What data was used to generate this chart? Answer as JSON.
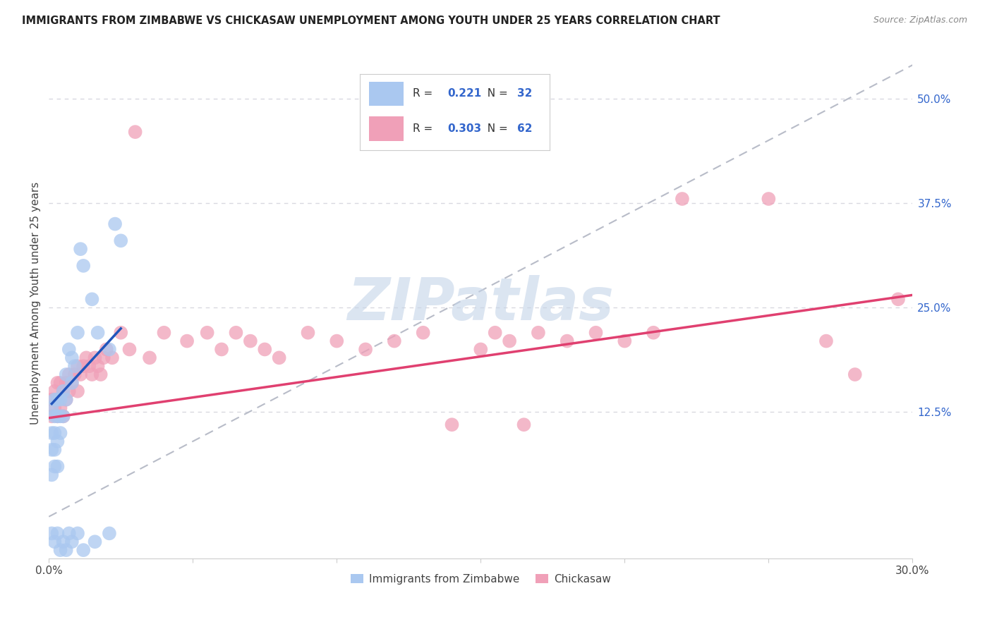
{
  "title": "IMMIGRANTS FROM ZIMBABWE VS CHICKASAW UNEMPLOYMENT AMONG YOUTH UNDER 25 YEARS CORRELATION CHART",
  "source": "Source: ZipAtlas.com",
  "ylabel": "Unemployment Among Youth under 25 years",
  "xlim": [
    0.0,
    0.3
  ],
  "ylim": [
    -0.05,
    0.56
  ],
  "xticks": [
    0.0,
    0.05,
    0.1,
    0.15,
    0.2,
    0.25,
    0.3
  ],
  "xticklabels": [
    "0.0%",
    "",
    "",
    "",
    "",
    "",
    "30.0%"
  ],
  "yticks_right": [
    0.125,
    0.25,
    0.375,
    0.5
  ],
  "ytick_right_labels": [
    "12.5%",
    "25.0%",
    "37.5%",
    "50.0%"
  ],
  "R_blue": 0.221,
  "N_blue": 32,
  "R_pink": 0.303,
  "N_pink": 62,
  "blue_color": "#aac8f0",
  "pink_color": "#f0a0b8",
  "blue_line_color": "#2255bb",
  "pink_line_color": "#e04070",
  "ref_line_color": "#b8bcc8",
  "watermark": "ZIPatlas",
  "watermark_color": "#c4d4e8",
  "blue_x": [
    0.001,
    0.001,
    0.001,
    0.001,
    0.002,
    0.002,
    0.002,
    0.002,
    0.002,
    0.003,
    0.003,
    0.003,
    0.003,
    0.004,
    0.004,
    0.004,
    0.005,
    0.005,
    0.006,
    0.006,
    0.007,
    0.008,
    0.008,
    0.009,
    0.01,
    0.011,
    0.012,
    0.015,
    0.017,
    0.021,
    0.023,
    0.025
  ],
  "blue_y": [
    0.13,
    0.1,
    0.08,
    0.05,
    0.14,
    0.12,
    0.1,
    0.08,
    0.06,
    0.14,
    0.12,
    0.09,
    0.06,
    0.14,
    0.12,
    0.1,
    0.15,
    0.12,
    0.17,
    0.14,
    0.2,
    0.19,
    0.16,
    0.18,
    0.22,
    0.32,
    0.3,
    0.26,
    0.22,
    0.2,
    0.35,
    0.33
  ],
  "blue_outliers_x": [
    0.001,
    0.002,
    0.003,
    0.004,
    0.005,
    0.006,
    0.007,
    0.008,
    0.01,
    0.012,
    0.016,
    0.021
  ],
  "blue_outliers_y": [
    -0.02,
    -0.03,
    -0.02,
    -0.04,
    -0.03,
    -0.04,
    -0.02,
    -0.03,
    -0.02,
    -0.04,
    -0.03,
    -0.02
  ],
  "pink_x": [
    0.001,
    0.001,
    0.002,
    0.002,
    0.003,
    0.003,
    0.003,
    0.004,
    0.004,
    0.005,
    0.005,
    0.006,
    0.006,
    0.007,
    0.007,
    0.008,
    0.009,
    0.01,
    0.01,
    0.011,
    0.012,
    0.013,
    0.014,
    0.015,
    0.016,
    0.017,
    0.018,
    0.019,
    0.02,
    0.022,
    0.025,
    0.028,
    0.03,
    0.035,
    0.04,
    0.048,
    0.055,
    0.06,
    0.065,
    0.07,
    0.075,
    0.08,
    0.09,
    0.1,
    0.11,
    0.12,
    0.13,
    0.14,
    0.15,
    0.155,
    0.16,
    0.165,
    0.17,
    0.18,
    0.19,
    0.2,
    0.21,
    0.22,
    0.25,
    0.27,
    0.28,
    0.295
  ],
  "pink_y": [
    0.14,
    0.12,
    0.15,
    0.13,
    0.16,
    0.14,
    0.12,
    0.16,
    0.13,
    0.15,
    0.12,
    0.16,
    0.14,
    0.17,
    0.15,
    0.16,
    0.17,
    0.18,
    0.15,
    0.17,
    0.18,
    0.19,
    0.18,
    0.17,
    0.19,
    0.18,
    0.17,
    0.19,
    0.2,
    0.19,
    0.22,
    0.2,
    0.46,
    0.19,
    0.22,
    0.21,
    0.22,
    0.2,
    0.22,
    0.21,
    0.2,
    0.19,
    0.22,
    0.21,
    0.2,
    0.21,
    0.22,
    0.11,
    0.2,
    0.22,
    0.21,
    0.11,
    0.22,
    0.21,
    0.22,
    0.21,
    0.22,
    0.38,
    0.38,
    0.21,
    0.17,
    0.26
  ],
  "pink_low_x": [
    0.001,
    0.002,
    0.003,
    0.004,
    0.005,
    0.006,
    0.007,
    0.008,
    0.009,
    0.01
  ],
  "pink_low_y": [
    0.1,
    0.11,
    0.1,
    0.11,
    0.1,
    0.09,
    0.11,
    0.1,
    0.09,
    0.1
  ],
  "blue_line_x0": 0.001,
  "blue_line_x1": 0.025,
  "blue_line_y0": 0.135,
  "blue_line_y1": 0.225,
  "pink_line_x0": 0.0,
  "pink_line_x1": 0.3,
  "pink_line_y0": 0.118,
  "pink_line_y1": 0.265,
  "ref_line_x0": 0.0,
  "ref_line_x1": 0.3,
  "ref_line_y0": 0.0,
  "ref_line_y1": 0.54
}
